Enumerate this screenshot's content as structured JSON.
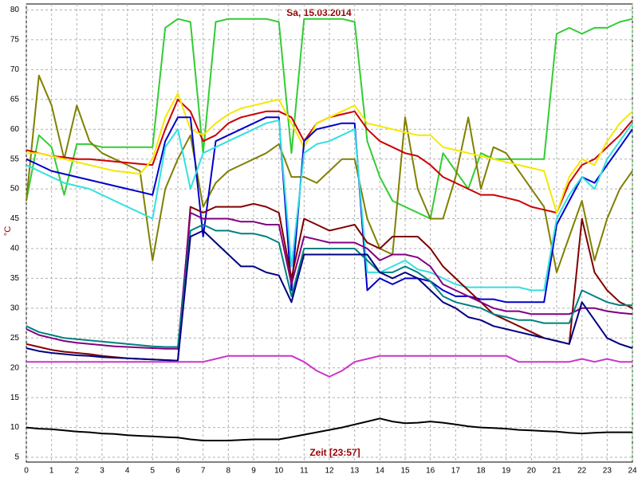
{
  "chart_data": {
    "type": "line",
    "title": "Sa, 15.03.2014",
    "x_label": "Zeit [23:57]",
    "y_label": "°C",
    "x": [
      0,
      0.5,
      1,
      1.5,
      2,
      2.5,
      3,
      3.5,
      4,
      4.5,
      5,
      5.5,
      6,
      6.5,
      7,
      7.5,
      8,
      8.5,
      9,
      9.5,
      10,
      10.5,
      11,
      11.5,
      12,
      12.5,
      13,
      13.5,
      14,
      14.5,
      15,
      15.5,
      16,
      16.5,
      17,
      17.5,
      18,
      18.5,
      19,
      19.5,
      20,
      20.5,
      21,
      21.5,
      22,
      22.5,
      23,
      23.5,
      24
    ],
    "xlim": [
      0,
      24
    ],
    "xticks": [
      0,
      1,
      2,
      3,
      4,
      5,
      6,
      7,
      8,
      9,
      10,
      11,
      12,
      13,
      14,
      15,
      16,
      17,
      18,
      19,
      20,
      21,
      22,
      23,
      24
    ],
    "ylim": [
      4.2,
      81
    ],
    "yticks": [
      5,
      10,
      15,
      20,
      25,
      30,
      35,
      40,
      45,
      50,
      55,
      60,
      65,
      70,
      75,
      80
    ],
    "grid": true,
    "series": [
      {
        "color": "#33cc33",
        "values": [
          48,
          59,
          57,
          49,
          57.5,
          57.5,
          57,
          57,
          57,
          57,
          57,
          77,
          78.5,
          78,
          56,
          78,
          78.5,
          78.5,
          78.5,
          78.5,
          78,
          56,
          78.5,
          78.5,
          78.5,
          78.5,
          78,
          58,
          52,
          48,
          47,
          46,
          45,
          56,
          53,
          50,
          56,
          55,
          55,
          55,
          55,
          55,
          76,
          77,
          76,
          77,
          77,
          78,
          78.5
        ]
      },
      {
        "color": "#808000",
        "values": [
          48,
          69,
          64,
          55,
          64,
          58,
          56,
          55,
          54,
          53,
          38,
          50,
          55,
          59,
          47,
          51,
          53,
          54,
          55,
          56,
          57.5,
          52,
          52,
          51,
          53,
          55,
          55,
          45,
          40,
          39,
          62,
          50,
          45,
          45,
          52,
          62,
          50,
          57,
          56,
          53,
          50,
          47,
          36,
          42,
          48,
          38,
          45,
          50,
          53
        ]
      },
      {
        "color": "#cc0000",
        "values": [
          56.5,
          56,
          55.5,
          55.3,
          55,
          55,
          54.8,
          54.6,
          54.4,
          54.2,
          54,
          60,
          65,
          63,
          58,
          59,
          61,
          62,
          62.5,
          63,
          63,
          62,
          58,
          61,
          62,
          62.5,
          63,
          60,
          58,
          57,
          56,
          55.5,
          54,
          52,
          51,
          50,
          49,
          49,
          48.5,
          48,
          47,
          46.5,
          46,
          51,
          54,
          55,
          57,
          59,
          61.5
        ]
      },
      {
        "color": "#f5e800",
        "values": [
          56,
          56,
          55.5,
          55,
          54.5,
          54,
          53.5,
          53,
          52.8,
          52.5,
          55,
          62,
          66,
          60,
          59,
          61,
          62.5,
          63.5,
          64,
          64.5,
          65,
          61,
          57,
          61,
          62,
          63,
          64,
          61,
          60.5,
          60,
          59.5,
          59,
          59,
          57,
          56.5,
          56,
          55.5,
          55,
          54.5,
          54,
          53.5,
          53,
          46,
          52,
          55,
          54,
          58,
          61,
          63
        ]
      },
      {
        "color": "#0000cc",
        "values": [
          55,
          54,
          53,
          52.5,
          52,
          51.5,
          51,
          50.5,
          50,
          49.5,
          49,
          58,
          62,
          62,
          42,
          58,
          59,
          60,
          61,
          62,
          62,
          33,
          58,
          60,
          60.5,
          61,
          61,
          33,
          35,
          34,
          35,
          35,
          34.5,
          33,
          32,
          32,
          31.5,
          31.5,
          31,
          31,
          31,
          31,
          44,
          48,
          52,
          51,
          54,
          57,
          60
        ]
      },
      {
        "color": "#33e0e0",
        "values": [
          54,
          53,
          52,
          51,
          50.5,
          50,
          49,
          48,
          47,
          46,
          45,
          57,
          60,
          50,
          56,
          57,
          58,
          59,
          60,
          61,
          61.5,
          37,
          56,
          57.5,
          58,
          59,
          60,
          36,
          36,
          37,
          38,
          36.5,
          36,
          35,
          34,
          33.5,
          33.5,
          33.5,
          33.5,
          33.5,
          33,
          33,
          45,
          49,
          52,
          50,
          55,
          58,
          61
        ]
      },
      {
        "color": "#800000",
        "values": [
          24,
          23.5,
          23,
          22.7,
          22.5,
          22.3,
          22,
          21.8,
          21.6,
          21.5,
          21.4,
          21.3,
          21.2,
          47,
          46,
          47,
          47,
          47,
          47.5,
          47,
          46,
          35,
          45,
          44,
          43,
          43.5,
          44,
          41,
          40,
          42,
          42,
          42,
          40,
          37,
          35,
          33,
          31,
          29,
          28,
          27,
          26,
          25,
          24.5,
          24,
          45,
          36,
          33,
          31,
          30
        ]
      },
      {
        "color": "#800080",
        "values": [
          26.5,
          25.5,
          25,
          24.5,
          24.2,
          24,
          23.8,
          23.6,
          23.5,
          23.4,
          23.3,
          23.2,
          23.2,
          46,
          45,
          45,
          45,
          44.5,
          44.5,
          44,
          44,
          34,
          42,
          41.5,
          41,
          41,
          41,
          40,
          38,
          39,
          39,
          38.5,
          37,
          34,
          33,
          32,
          31,
          30,
          29.5,
          29.5,
          29,
          29,
          29,
          29,
          30,
          30,
          29.5,
          29.2,
          29
        ]
      },
      {
        "color": "#008080",
        "values": [
          27,
          26,
          25.5,
          25,
          24.8,
          24.6,
          24.4,
          24.2,
          24,
          23.8,
          23.6,
          23.5,
          23.5,
          43,
          44,
          43,
          43,
          42.5,
          42.5,
          42,
          41,
          32,
          40,
          40,
          40,
          40,
          40,
          38,
          36,
          36,
          37,
          36,
          34.5,
          32,
          31,
          30.5,
          30,
          29,
          28.5,
          28,
          28,
          27.5,
          27.5,
          27.5,
          33,
          32,
          31,
          30.5,
          30.5
        ]
      },
      {
        "color": "#000080",
        "values": [
          23.3,
          22.8,
          22.5,
          22.3,
          22.1,
          22,
          21.8,
          21.7,
          21.6,
          21.5,
          21.4,
          21.3,
          21.2,
          42,
          43,
          41,
          39,
          37,
          37,
          36,
          35.5,
          31,
          39,
          39,
          39,
          39,
          39,
          39,
          36,
          35,
          36,
          35,
          33,
          31,
          30,
          28.5,
          28,
          27,
          26.5,
          26,
          25.5,
          25,
          24.5,
          24,
          31,
          28,
          25,
          24,
          23.3
        ]
      },
      {
        "color": "#cc33cc",
        "values": [
          21,
          21,
          21,
          21,
          21,
          21,
          21,
          21,
          21,
          21,
          21,
          21,
          21,
          21,
          21,
          21.5,
          22,
          22,
          22,
          22,
          22,
          22,
          21,
          19.5,
          18.5,
          19.5,
          21,
          21.5,
          22,
          22,
          22,
          22,
          22,
          22,
          22,
          22,
          22,
          22,
          22,
          21,
          21,
          21,
          21,
          21,
          21.5,
          21,
          21.5,
          21,
          21
        ]
      },
      {
        "color": "#000000",
        "values": [
          10,
          9.8,
          9.7,
          9.5,
          9.3,
          9.2,
          9,
          8.9,
          8.7,
          8.6,
          8.5,
          8.4,
          8.3,
          8,
          7.8,
          7.8,
          7.8,
          7.9,
          8,
          8,
          8,
          8.4,
          8.8,
          9.2,
          9.6,
          10,
          10.5,
          11,
          11.5,
          11,
          10.7,
          10.8,
          11,
          10.8,
          10.5,
          10.2,
          10,
          9.9,
          9.8,
          9.6,
          9.5,
          9.4,
          9.3,
          9.1,
          9,
          9.1,
          9.2,
          9.2,
          9.2
        ]
      }
    ]
  }
}
